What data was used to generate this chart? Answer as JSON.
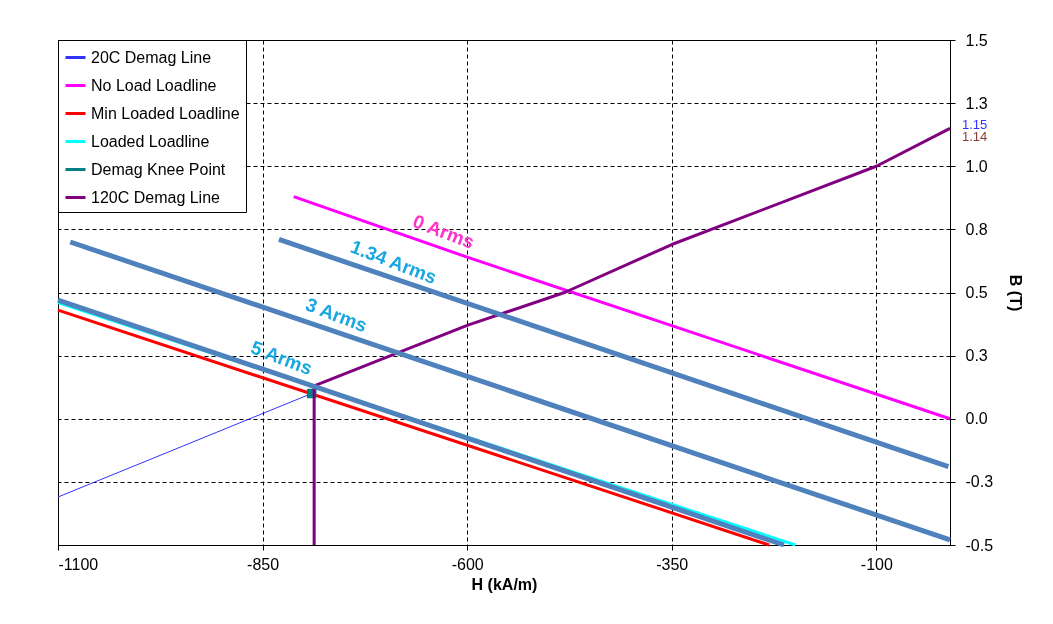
{
  "chart_data": {
    "type": "line",
    "xlabel": "H (kA/m)",
    "ylabel": "B (T)",
    "xlim": [
      -1100,
      -10
    ],
    "xticks": [
      -1100,
      -850,
      -600,
      -350,
      -100
    ],
    "ylim": [
      -0.5,
      1.5
    ],
    "yticks": [
      {
        "value": -0.5,
        "label": "-0.5"
      },
      {
        "value": -0.25,
        "label": "-0.3"
      },
      {
        "value": 0,
        "label": "0.0"
      },
      {
        "value": 0.25,
        "label": "0.3"
      },
      {
        "value": 0.5,
        "label": "0.5"
      },
      {
        "value": 0.75,
        "label": "0.8"
      },
      {
        "value": 1.0,
        "label": "1.0"
      },
      {
        "value": 1.25,
        "label": "1.3"
      },
      {
        "value": 1.5,
        "label": "1.5"
      }
    ],
    "grid": true,
    "legend": "top left",
    "series": [
      {
        "name": "20C Demag Line",
        "color": "#3333ff",
        "x": [
          -1100,
          -790
        ],
        "values": [
          -0.31,
          0.1
        ]
      },
      {
        "name": "No Load Loadline",
        "color": "#ff00ff",
        "x": [
          -812,
          -600,
          -10
        ],
        "values": [
          0.88,
          0.64,
          0.0
        ]
      },
      {
        "name": "Min Loaded Loadline",
        "color": "#ff0000",
        "x": [
          -1100,
          -231
        ],
        "values": [
          0.43,
          -0.5
        ]
      },
      {
        "name": "Loaded Loadline",
        "color": "#00ffff",
        "x": [
          -1100,
          -199
        ],
        "values": [
          0.46,
          -0.5
        ]
      },
      {
        "name": "Demag Knee Point",
        "color": "#008080",
        "type": "scatter",
        "marker": "square",
        "x": [
          -790
        ],
        "values": [
          0.1
        ]
      },
      {
        "name": "120C Demag Line",
        "color": "#800080",
        "x": [
          -787,
          -787,
          -600,
          -481,
          -350,
          -100,
          -10
        ],
        "values": [
          -0.5,
          0.13,
          0.37,
          0.5,
          0.69,
          1.0,
          1.15
        ]
      },
      {
        "color": "#4f81bd",
        "x": [
          -830,
          -12
        ],
        "values": [
          0.71,
          -0.19
        ]
      },
      {
        "color": "#4f81bd",
        "x": [
          -1085,
          -10
        ],
        "values": [
          0.7,
          -0.48
        ]
      },
      {
        "color": "#4f81bd",
        "x": [
          -1100,
          -213
        ],
        "values": [
          0.47,
          -0.5
        ]
      }
    ],
    "annotations": [
      {
        "text": "0 Arms",
        "x": -636,
        "y": 0.68
      },
      {
        "text": "1.34 Arms",
        "x": -697,
        "y": 0.56
      },
      {
        "text": "3 Arms",
        "x": -767,
        "y": 0.35
      },
      {
        "text": "5 Arms",
        "x": -834,
        "y": 0.18
      },
      {
        "text": "1.15",
        "x": -10,
        "y": 1.15
      },
      {
        "text": "1.14",
        "x": -10,
        "y": 1.14
      }
    ]
  }
}
